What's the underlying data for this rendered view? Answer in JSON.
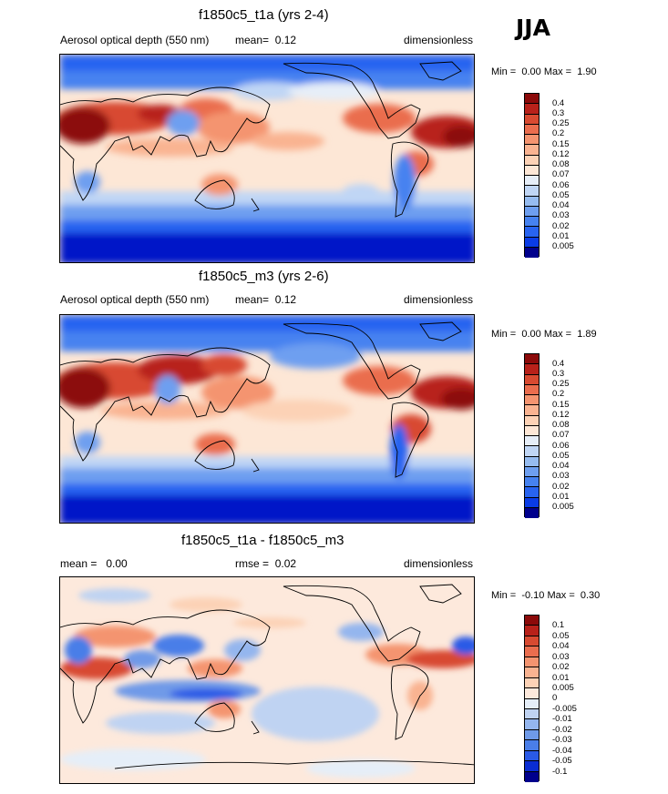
{
  "season": "JJA",
  "colors": {
    "abs": [
      "#00008c",
      "#0019c8",
      "#0a3ce6",
      "#2864f0",
      "#4682f0",
      "#6e9ff0",
      "#96bcf0",
      "#c0d6f5",
      "#e6eef8",
      "#fde7d6",
      "#fcd2b6",
      "#f9b391",
      "#f49470",
      "#ea6d4e",
      "#d84a31",
      "#b8211a",
      "#8c0a0a"
    ],
    "diff": [
      "#00008c",
      "#0a2dd2",
      "#2a5ae6",
      "#4a7ee8",
      "#6f9ae8",
      "#94b6ee",
      "#bfd3f2",
      "#e5eef8",
      "#fde9dc",
      "#fcd2b6",
      "#f9b391",
      "#f49470",
      "#ea6d4e",
      "#d84a31",
      "#b8211a",
      "#8c0a0a"
    ]
  },
  "chart_data": [
    {
      "type": "heatmap",
      "title": "f1850c5_t1a (yrs 2-4)",
      "variable": "Aerosol optical depth (550 nm)",
      "mean_label": "mean=",
      "mean": "0.12",
      "units": "dimensionless",
      "min_label": "Min =",
      "min": "0.00",
      "max_label": "Max =",
      "max": "1.90",
      "colorbar_levels": [
        "0.4",
        "0.3",
        "0.25",
        "0.2",
        "0.15",
        "0.12",
        "0.08",
        "0.07",
        "0.06",
        "0.05",
        "0.04",
        "0.03",
        "0.02",
        "0.01",
        "0.005"
      ]
    },
    {
      "type": "heatmap",
      "title": "f1850c5_m3 (yrs 2-6)",
      "variable": "Aerosol optical depth (550 nm)",
      "mean_label": "mean=",
      "mean": "0.12",
      "units": "dimensionless",
      "min_label": "Min =",
      "min": "0.00",
      "max_label": "Max =",
      "max": "1.89",
      "colorbar_levels": [
        "0.4",
        "0.3",
        "0.25",
        "0.2",
        "0.15",
        "0.12",
        "0.08",
        "0.07",
        "0.06",
        "0.05",
        "0.04",
        "0.03",
        "0.02",
        "0.01",
        "0.005"
      ]
    },
    {
      "type": "heatmap",
      "title": "f1850c5_t1a - f1850c5_m3",
      "mean_label": "mean =",
      "mean": "0.00",
      "rmse_label": "rmse =",
      "rmse": "0.02",
      "units": "dimensionless",
      "min_label": "Min =",
      "min": "-0.10",
      "max_label": "Max =",
      "max": "0.30",
      "colorbar_levels": [
        "0.1",
        "0.05",
        "0.04",
        "0.03",
        "0.02",
        "0.01",
        "0.005",
        "0",
        "-0.005",
        "-0.01",
        "-0.02",
        "-0.03",
        "-0.04",
        "-0.05",
        "-0.1"
      ]
    }
  ]
}
